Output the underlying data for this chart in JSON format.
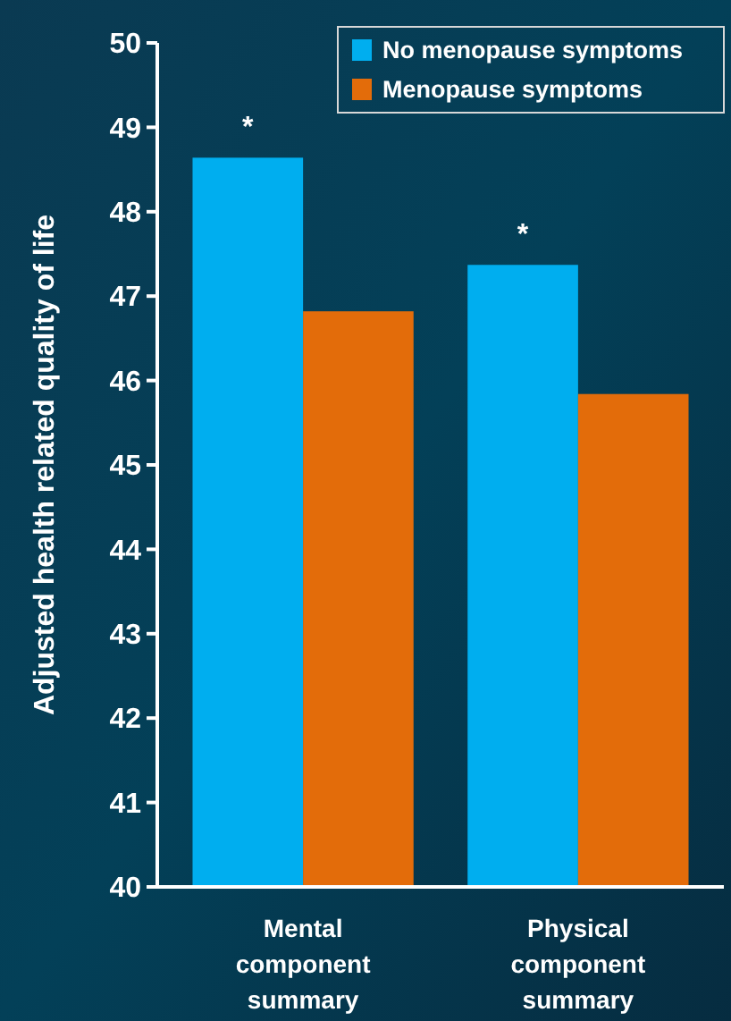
{
  "chart_data": {
    "type": "bar",
    "ylabel": "Adjusted health related quality of life",
    "categories": [
      "Mental component summary",
      "Physical component summary"
    ],
    "series": [
      {
        "name": "No menopause symptoms",
        "color": "#00aeef",
        "values": [
          48.64,
          47.37
        ]
      },
      {
        "name": "Menopause symptoms",
        "color": "#e36c0a",
        "values": [
          46.82,
          45.84
        ]
      }
    ],
    "ylim": [
      40,
      50
    ],
    "yticks": [
      40,
      41,
      42,
      43,
      44,
      45,
      46,
      47,
      48,
      49,
      50
    ],
    "legend": "top right",
    "grid": false,
    "annotations": [
      {
        "text": "*",
        "x": "Mental component summary",
        "y": 48.64
      },
      {
        "text": "*",
        "x": "Physical component summary",
        "y": 47.37
      }
    ]
  }
}
